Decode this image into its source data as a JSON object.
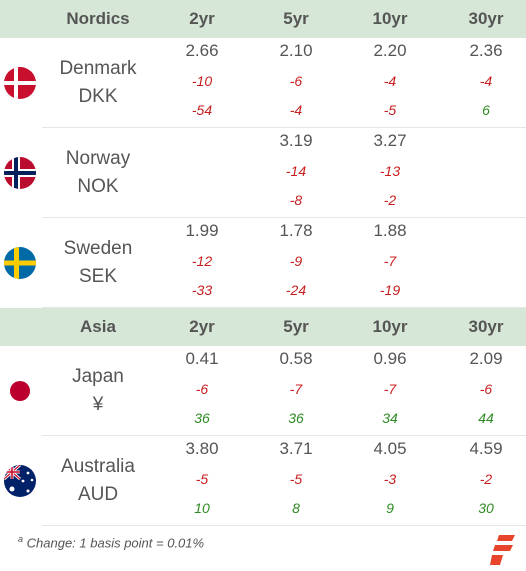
{
  "sections": [
    {
      "title": "Nordics",
      "columns": [
        "2yr",
        "5yr",
        "10yr",
        "30yr"
      ],
      "rows": [
        {
          "country": "Denmark",
          "currency": "DKK",
          "flag_icon": "denmark-flag-icon",
          "yields": [
            "2.66",
            "2.10",
            "2.20",
            "2.36"
          ],
          "change1": [
            "-10",
            "-6",
            "-4",
            "-4"
          ],
          "change2": [
            "-54",
            "-4",
            "-5",
            "6"
          ]
        },
        {
          "country": "Norway",
          "currency": "NOK",
          "flag_icon": "norway-flag-icon",
          "yields": [
            "",
            "3.19",
            "3.27",
            ""
          ],
          "change1": [
            "",
            "-14",
            "-13",
            ""
          ],
          "change2": [
            "",
            "-8",
            "-2",
            ""
          ]
        },
        {
          "country": "Sweden",
          "currency": "SEK",
          "flag_icon": "sweden-flag-icon",
          "yields": [
            "1.99",
            "1.78",
            "1.88",
            ""
          ],
          "change1": [
            "-12",
            "-9",
            "-7",
            ""
          ],
          "change2": [
            "-33",
            "-24",
            "-19",
            ""
          ]
        }
      ]
    },
    {
      "title": "Asia",
      "columns": [
        "2yr",
        "5yr",
        "10yr",
        "30yr"
      ],
      "rows": [
        {
          "country": "Japan",
          "currency": "¥",
          "flag_icon": "japan-flag-icon",
          "yields": [
            "0.41",
            "0.58",
            "0.96",
            "2.09"
          ],
          "change1": [
            "-6",
            "-7",
            "-7",
            "-6"
          ],
          "change2": [
            "36",
            "36",
            "34",
            "44"
          ]
        },
        {
          "country": "Australia",
          "currency": "AUD",
          "flag_icon": "australia-flag-icon",
          "yields": [
            "3.80",
            "3.71",
            "4.05",
            "4.59"
          ],
          "change1": [
            "-5",
            "-5",
            "-3",
            "-2"
          ],
          "change2": [
            "10",
            "8",
            "9",
            "30"
          ]
        }
      ]
    }
  ],
  "footnote": {
    "marker": "a",
    "text": "Change: 1 basis point = 0.01%"
  },
  "logo_icon": "brand-logo-icon",
  "colors": {
    "header_bg": "#d7e7d7",
    "negative": "#c81e1e",
    "positive": "#2e8b22",
    "logo": "#e8442c"
  }
}
